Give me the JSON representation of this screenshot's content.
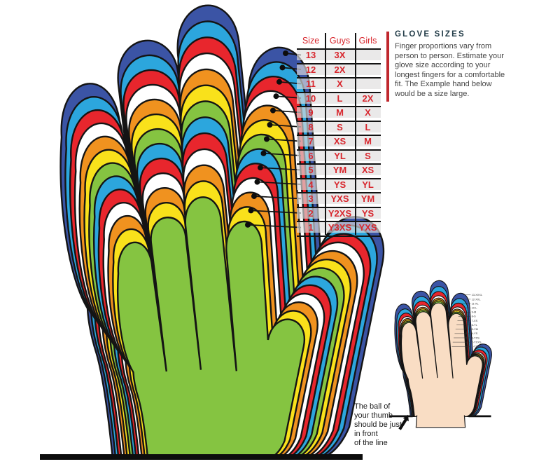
{
  "table": {
    "headers": [
      "Size",
      "Guys",
      "Girls"
    ],
    "rows": [
      {
        "size": "13",
        "guys": "3X",
        "girls": ""
      },
      {
        "size": "12",
        "guys": "2X",
        "girls": ""
      },
      {
        "size": "11",
        "guys": "X",
        "girls": ""
      },
      {
        "size": "10",
        "guys": "L",
        "girls": "2X"
      },
      {
        "size": "9",
        "guys": "M",
        "girls": "X"
      },
      {
        "size": "8",
        "guys": "S",
        "girls": "L"
      },
      {
        "size": "7",
        "guys": "XS",
        "girls": "M"
      },
      {
        "size": "6",
        "guys": "YL",
        "girls": "S"
      },
      {
        "size": "5",
        "guys": "YM",
        "girls": "XS"
      },
      {
        "size": "4",
        "guys": "YS",
        "girls": "YL"
      },
      {
        "size": "3",
        "guys": "YXS",
        "girls": "YM"
      },
      {
        "size": "2",
        "guys": "Y2XS",
        "girls": "YS"
      },
      {
        "size": "1",
        "guys": "Y3XS",
        "girls": "YXS"
      }
    ]
  },
  "info": {
    "title": "GLOVE SIZES",
    "body": "Finger proportions vary from person to person. Estimate your glove size according to your longest fingers for a comfortable fit. The Example hand below would be a size large."
  },
  "note": {
    "text": "The ball of\nyour thumb\nshould be just\nin front\nof the line"
  },
  "hand_layers": [
    {
      "size": 13,
      "color": "#3b54a5"
    },
    {
      "size": 12,
      "color": "#2ca6dd"
    },
    {
      "size": 11,
      "color": "#e8262d"
    },
    {
      "size": 10,
      "color": "#ffffff"
    },
    {
      "size": 9,
      "color": "#f0921f"
    },
    {
      "size": 8,
      "color": "#f9e11b"
    },
    {
      "size": 7,
      "color": "#85c441"
    },
    {
      "size": 6,
      "color": "#2ca6dd"
    },
    {
      "size": 5,
      "color": "#e8262d"
    },
    {
      "size": 4,
      "color": "#ffffff"
    },
    {
      "size": 3,
      "color": "#f0921f"
    },
    {
      "size": 2,
      "color": "#f9e11b"
    },
    {
      "size": 1,
      "color": "#85c441"
    }
  ],
  "mini_labels": [
    "13-XXXL",
    "12-XXL",
    "11-XL",
    "10-L",
    "9-M",
    "8-S",
    "7-XS",
    "6-YL",
    "5-YM",
    "4-YS",
    "3-YXS",
    "2-YXXS",
    "1-YXXXS"
  ],
  "colors": {
    "skin": "#f9ddc4",
    "outline": "#141414",
    "red_text": "#d8262d",
    "rule_red": "#c0272d"
  }
}
